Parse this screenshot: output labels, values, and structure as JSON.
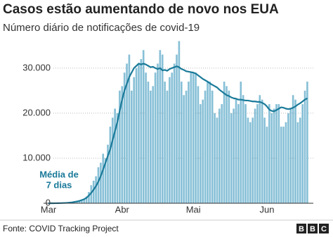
{
  "chart_data": {
    "type": "bar",
    "title": "Casos estão aumentando de novo nos EUA",
    "subtitle": "Número diário de notificações de covid-19",
    "annotation": [
      "Média de",
      "7 dias"
    ],
    "source": "Fonte: COVID Tracking Project",
    "logo": [
      "B",
      "B",
      "C"
    ],
    "grid": true,
    "ylim": [
      0,
      37000
    ],
    "yticks": [
      {
        "value": 0,
        "label": "0"
      },
      {
        "value": 10000,
        "label": "10.000"
      },
      {
        "value": 20000,
        "label": "20.000"
      },
      {
        "value": 30000,
        "label": "30.000"
      }
    ],
    "categories": [
      "Mar",
      null,
      null,
      null,
      null,
      null,
      null,
      null,
      null,
      null,
      null,
      null,
      null,
      null,
      null,
      null,
      null,
      null,
      null,
      null,
      null,
      null,
      null,
      null,
      null,
      null,
      null,
      null,
      null,
      null,
      null,
      "Abr",
      null,
      null,
      null,
      null,
      null,
      null,
      null,
      null,
      null,
      null,
      null,
      null,
      null,
      null,
      null,
      null,
      null,
      null,
      null,
      null,
      null,
      null,
      null,
      null,
      null,
      null,
      null,
      null,
      null,
      "Mai",
      null,
      null,
      null,
      null,
      null,
      null,
      null,
      null,
      null,
      null,
      null,
      null,
      null,
      null,
      null,
      null,
      null,
      null,
      null,
      null,
      null,
      null,
      null,
      null,
      null,
      null,
      null,
      null,
      null,
      null,
      "Jun",
      null,
      null,
      null,
      null,
      null,
      null,
      null,
      null,
      null,
      null,
      null,
      null,
      null,
      null,
      null,
      null,
      null
    ],
    "series": [
      {
        "type": "bar",
        "color": "#86bfd6",
        "values": [
          0,
          0,
          10,
          20,
          30,
          50,
          80,
          100,
          150,
          200,
          300,
          400,
          500,
          700,
          800,
          1000,
          1500,
          2500,
          4000,
          5000,
          6000,
          8000,
          9000,
          11000,
          10000,
          13000,
          17000,
          19000,
          21000,
          20000,
          25000,
          26000,
          29000,
          31000,
          33000,
          25000,
          28000,
          30000,
          31000,
          32000,
          34000,
          29000,
          27000,
          25000,
          26000,
          29000,
          31000,
          34000,
          33000,
          27000,
          25000,
          28000,
          29000,
          31000,
          33000,
          36000,
          27000,
          24000,
          25000,
          27000,
          29000,
          29000,
          29000,
          26000,
          22000,
          23000,
          25000,
          27000,
          27000,
          25000,
          20000,
          19000,
          21000,
          22000,
          27000,
          26000,
          25000,
          20000,
          21000,
          23000,
          22000,
          27000,
          24000,
          22000,
          19000,
          18000,
          19000,
          21000,
          22000,
          24000,
          23000,
          19000,
          17000,
          22000,
          20000,
          21000,
          22000,
          22000,
          17000,
          17000,
          18000,
          20000,
          21000,
          24000,
          23000,
          18000,
          19000,
          22000,
          25000,
          27000
        ]
      },
      {
        "type": "line",
        "color": "#1a7a99",
        "values": [
          0,
          0,
          0,
          10,
          20,
          30,
          50,
          70,
          100,
          150,
          200,
          300,
          400,
          500,
          700,
          900,
          1200,
          1700,
          2300,
          3000,
          3800,
          4800,
          6000,
          7500,
          9000,
          10500,
          12000,
          14000,
          16000,
          18000,
          20500,
          23000,
          25000,
          26500,
          28000,
          29000,
          30000,
          30500,
          31000,
          30800,
          31000,
          30800,
          30500,
          30200,
          30300,
          30000,
          29800,
          30000,
          29500,
          29600,
          29400,
          29800,
          30000,
          30200,
          30400,
          30200,
          29800,
          29600,
          29300,
          29200,
          29100,
          29000,
          28800,
          28400,
          28000,
          27600,
          27300,
          27000,
          26600,
          26300,
          26000,
          25700,
          25200,
          24800,
          24400,
          24000,
          23800,
          23500,
          23300,
          23200,
          23000,
          23000,
          22900,
          22800,
          22800,
          22700,
          22600,
          22600,
          22500,
          22500,
          22300,
          22000,
          21500,
          20800,
          20500,
          20400,
          20700,
          21000,
          21300,
          21200,
          21000,
          20900,
          21000,
          21200,
          21500,
          21900,
          22200,
          22600,
          23000,
          23300
        ]
      }
    ]
  }
}
